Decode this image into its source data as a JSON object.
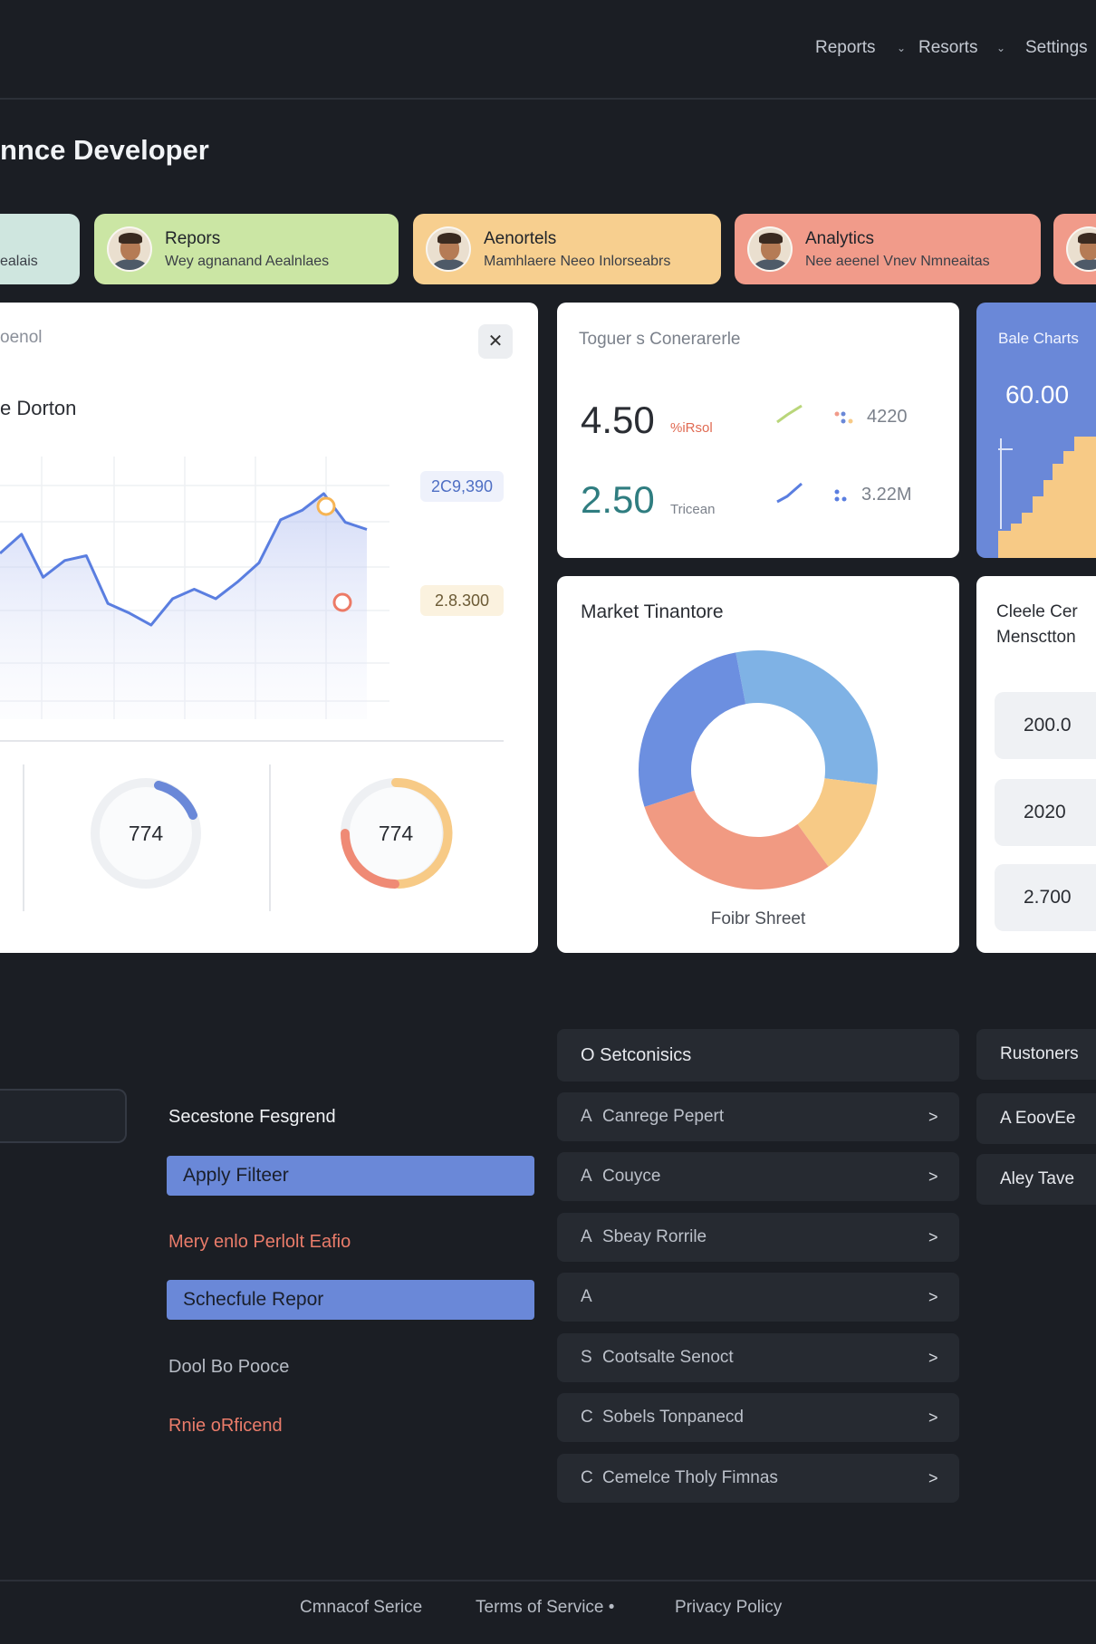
{
  "nav": {
    "items": [
      "Reports",
      "Resorts",
      "Settings"
    ]
  },
  "page_title": "nnce Developer",
  "profiles": [
    {
      "name": "",
      "desc": "ealais",
      "bg": "#cfe6df"
    },
    {
      "name": "Repors",
      "desc": "Wey agnanand Aealnlaes",
      "bg": "#cbe6a4"
    },
    {
      "name": "Aenortels",
      "desc": "Mamhlaere Neeo Inlorseabrs",
      "bg": "#f7cf8f"
    },
    {
      "name": "Analytics",
      "desc": "Nee aeenel Vnev Nmneaitas",
      "bg": "#f19b8a"
    },
    {
      "name": "",
      "desc": "",
      "bg": "#f19b8a"
    }
  ],
  "main_panel": {
    "title": "oenol",
    "close_symbol": "✕",
    "subtitle": "e Dorton",
    "tag_top": "2C9,390",
    "tag_bottom": "2.8.300",
    "ring_left_value": "774",
    "ring_right_value": "774",
    "line_color": "#5a7ee0",
    "line_values": [
      58,
      66,
      48,
      55,
      57,
      37,
      33,
      28,
      39,
      43,
      39,
      46,
      54,
      72,
      76,
      83,
      71,
      68
    ]
  },
  "metric_panel": {
    "title": "Toguer s Conerarerle",
    "row1": {
      "value": "4.50",
      "label": "%iRsol",
      "metric": "4220"
    },
    "row2": {
      "value": "2.50",
      "label": "Tricean",
      "metric": "3.22M"
    }
  },
  "blue_panel": {
    "title": "Bale Charts",
    "value": "60.00"
  },
  "donut_panel": {
    "title": "Market Tinantore",
    "footer": "Foibr Shreet"
  },
  "list_panel": {
    "title_line1": "Cleele Cer",
    "title_line2": "Mensctton",
    "rows": [
      "200.0",
      "2020",
      "2.700"
    ]
  },
  "lower": {
    "label1": "Secestone Fesgrend",
    "button1": "Apply Filteer",
    "label2": "Mery enlo Perlolt Eafio",
    "button2": "Schecfule Repor",
    "label3": "Dool Bo Pooce",
    "label4": "Rnie oRficend"
  },
  "sidelist": {
    "header": "O Setconisics",
    "rows": [
      {
        "letter": "A",
        "text": "Canrege Pepert"
      },
      {
        "letter": "A",
        "text": "Couyce"
      },
      {
        "letter": "A",
        "text": "Sbeay Rorrile"
      },
      {
        "letter": "A",
        "text": ""
      },
      {
        "letter": "S",
        "text": "Cootsalte Senoct"
      },
      {
        "letter": "C",
        "text": "Sobels Tonpanecd"
      },
      {
        "letter": "C",
        "text": "Cemelce Tholy Fimnas"
      }
    ],
    "arrow": ">"
  },
  "right_column": {
    "items": [
      "Rustoners",
      "A  EoovEe",
      "Aley Tave"
    ]
  },
  "footer": {
    "links": [
      "Cmnacof Serice",
      "Terms of Service •",
      "Privacy Policy"
    ]
  },
  "chart_data": [
    {
      "type": "line",
      "title": "",
      "series": [
        {
          "values": [
            58,
            66,
            48,
            55,
            57,
            37,
            33,
            28,
            39,
            43,
            39,
            46,
            54,
            72,
            76,
            83,
            71,
            68
          ]
        }
      ]
    },
    {
      "type": "pie",
      "title": "Market Tinantore",
      "values": [
        30,
        13,
        30,
        27
      ],
      "colors": [
        "#7fb2e5",
        "#f7ca86",
        "#f19a82",
        "#6c8fe0"
      ]
    }
  ]
}
